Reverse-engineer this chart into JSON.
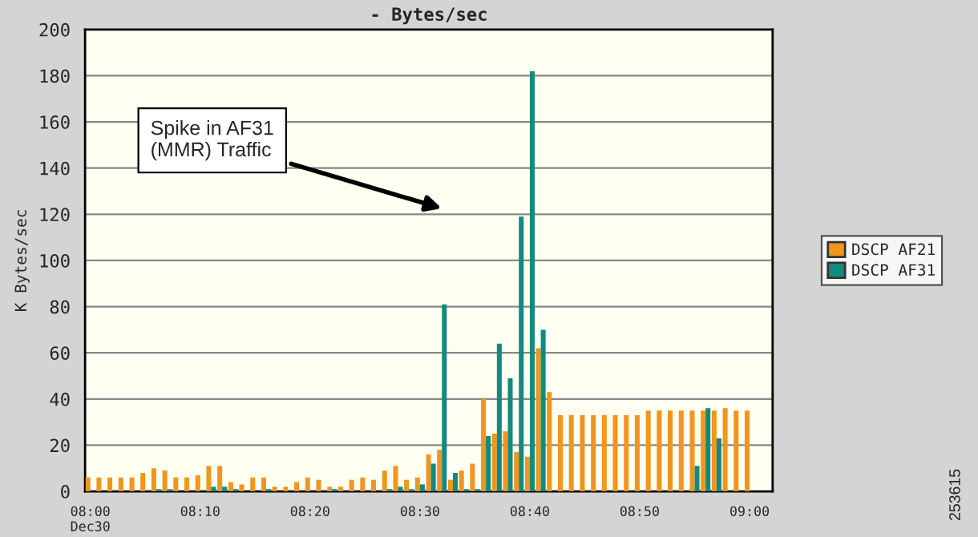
{
  "chart_data": {
    "type": "bar",
    "title": "- Bytes/sec",
    "ylabel": "K Bytes/sec",
    "x": [
      8.0,
      8.0167,
      8.0333,
      8.05,
      8.0667,
      8.0833,
      8.1,
      8.1167,
      8.1333,
      8.15,
      8.1667,
      8.1833,
      8.2,
      8.2167,
      8.2333,
      8.25,
      8.2667,
      8.2833,
      8.3,
      8.3167,
      8.3333,
      8.35,
      8.3667,
      8.3833,
      8.4,
      8.4167,
      8.4333,
      8.45,
      8.4667,
      8.4833,
      8.5,
      8.5167,
      8.5333,
      8.55,
      8.5667,
      8.5833,
      8.6,
      8.6167,
      8.6333,
      8.65,
      8.6667,
      8.6833,
      8.7,
      8.7167,
      8.7333,
      8.75,
      8.7667,
      8.7833,
      8.8,
      8.8167,
      8.8333,
      8.85,
      8.8667,
      8.8833,
      8.9,
      8.9167,
      8.9333,
      8.95,
      8.9667,
      8.9833,
      9.0
    ],
    "series": [
      {
        "name": "DSCP AF21",
        "color": "#f0961e",
        "values": [
          6,
          6,
          6,
          6,
          6,
          8,
          10,
          9,
          6,
          6,
          7,
          11,
          11,
          4,
          3,
          6,
          6,
          2,
          2,
          4,
          6,
          5,
          2,
          2,
          5,
          6,
          5,
          9,
          11,
          5,
          6,
          16,
          18,
          5,
          9,
          12,
          40,
          25,
          26,
          17,
          15,
          62,
          43,
          33,
          33,
          33,
          33,
          33,
          33,
          33,
          33,
          35,
          35,
          35,
          35,
          35,
          35,
          35,
          36,
          35,
          35
        ]
      },
      {
        "name": "DSCP AF31",
        "color": "#138a80",
        "values": [
          0,
          0,
          0,
          0,
          0,
          0,
          1,
          1,
          0,
          0,
          0,
          2,
          2,
          1,
          0,
          0,
          1,
          0,
          0,
          0,
          0,
          0,
          1,
          0,
          0,
          0,
          0,
          1,
          2,
          1,
          3,
          12,
          81,
          8,
          1,
          1,
          24,
          64,
          49,
          119,
          182,
          70,
          0,
          0,
          0,
          0,
          0,
          0,
          0,
          0,
          0,
          0,
          0,
          0,
          0,
          11,
          36,
          23,
          0,
          0,
          0
        ]
      }
    ],
    "xlim": [
      7.992,
      9.035
    ],
    "xticks": [
      {
        "value": 8.0,
        "label": "08:00\nDec30"
      },
      {
        "value": 8.1667,
        "label": "08:10"
      },
      {
        "value": 8.3333,
        "label": "08:20"
      },
      {
        "value": 8.5,
        "label": "08:30"
      },
      {
        "value": 8.6667,
        "label": "08:40"
      },
      {
        "value": 8.8333,
        "label": "08:50"
      },
      {
        "value": 9.0,
        "label": "09:00"
      }
    ],
    "ylim": [
      0,
      200
    ],
    "yticks": [
      0,
      20,
      40,
      60,
      80,
      100,
      120,
      140,
      160,
      180,
      200
    ],
    "grid": "y",
    "legend": "right",
    "annotations": [
      "Spike in AF31\n(MMR) Traffic",
      "253615"
    ]
  }
}
